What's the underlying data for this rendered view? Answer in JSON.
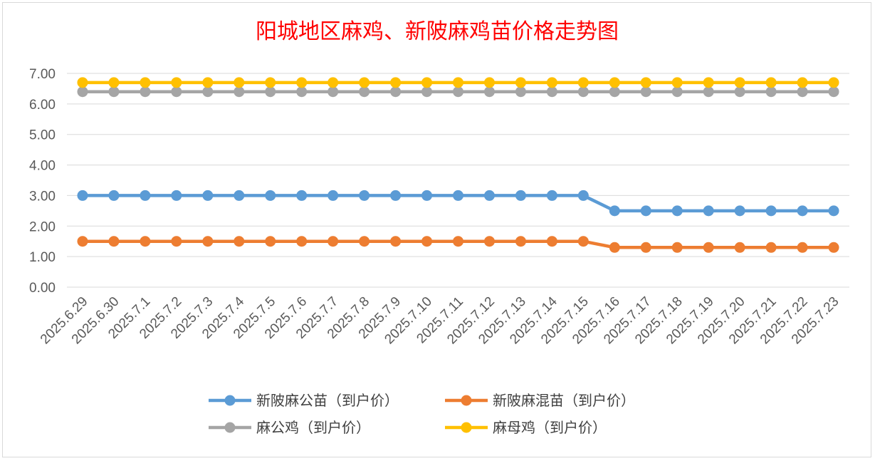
{
  "chart_data": {
    "type": "line",
    "title": "阳城地区麻鸡、新陂麻鸡苗价格走势图",
    "xlabel": "",
    "ylabel": "",
    "ylim": [
      0,
      7
    ],
    "yticks": [
      "0.00",
      "1.00",
      "2.00",
      "3.00",
      "4.00",
      "5.00",
      "6.00",
      "7.00"
    ],
    "grid": true,
    "legend_position": "bottom",
    "categories": [
      "2025.6.29",
      "2025.6.30",
      "2025.7.1",
      "2025.7.2",
      "2025.7.3",
      "2025.7.4",
      "2025.7.5",
      "2025.7.6",
      "2025.7.7",
      "2025.7.8",
      "2025.7.9",
      "2025.7.10",
      "2025.7.11",
      "2025.7.12",
      "2025.7.13",
      "2025.7.14",
      "2025.7.15",
      "2025.7.16",
      "2025.7.17",
      "2025.7.18",
      "2025.7.19",
      "2025.7.20",
      "2025.7.21",
      "2025.7.22",
      "2025.7.23"
    ],
    "series": [
      {
        "name": "新陂麻公苗（到户价）",
        "color": "#5b9bd5",
        "values": [
          3.0,
          3.0,
          3.0,
          3.0,
          3.0,
          3.0,
          3.0,
          3.0,
          3.0,
          3.0,
          3.0,
          3.0,
          3.0,
          3.0,
          3.0,
          3.0,
          3.0,
          2.5,
          2.5,
          2.5,
          2.5,
          2.5,
          2.5,
          2.5,
          2.5
        ]
      },
      {
        "name": "新陂麻混苗（到户价）",
        "color": "#ed7d31",
        "values": [
          1.5,
          1.5,
          1.5,
          1.5,
          1.5,
          1.5,
          1.5,
          1.5,
          1.5,
          1.5,
          1.5,
          1.5,
          1.5,
          1.5,
          1.5,
          1.5,
          1.5,
          1.3,
          1.3,
          1.3,
          1.3,
          1.3,
          1.3,
          1.3,
          1.3
        ]
      },
      {
        "name": "麻公鸡（到户价）",
        "color": "#a5a5a5",
        "values": [
          6.4,
          6.4,
          6.4,
          6.4,
          6.4,
          6.4,
          6.4,
          6.4,
          6.4,
          6.4,
          6.4,
          6.4,
          6.4,
          6.4,
          6.4,
          6.4,
          6.4,
          6.4,
          6.4,
          6.4,
          6.4,
          6.4,
          6.4,
          6.4,
          6.4
        ]
      },
      {
        "name": "麻母鸡（到户价）",
        "color": "#ffc000",
        "values": [
          6.7,
          6.7,
          6.7,
          6.7,
          6.7,
          6.7,
          6.7,
          6.7,
          6.7,
          6.7,
          6.7,
          6.7,
          6.7,
          6.7,
          6.7,
          6.7,
          6.7,
          6.7,
          6.7,
          6.7,
          6.7,
          6.7,
          6.7,
          6.7,
          6.7
        ]
      }
    ]
  }
}
